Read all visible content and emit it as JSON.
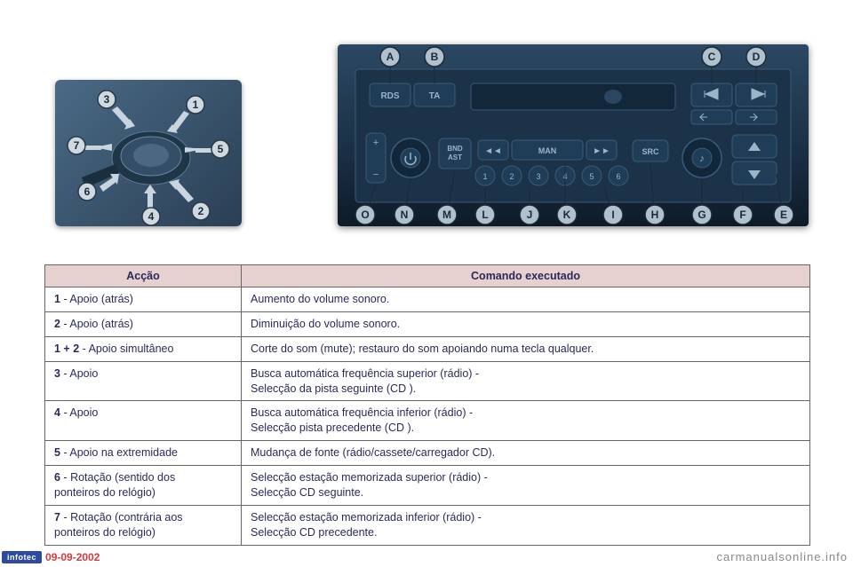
{
  "images": {
    "stalk": {
      "bg_gradient": [
        "#4a6a85",
        "#2a3f55"
      ],
      "arrow_color": "#c8d4de",
      "number_circle_fill": "#d0d8e0",
      "number_circle_stroke": "#2a3a4a",
      "number_text_color": "#1a2a3a",
      "labels": [
        "1",
        "2",
        "3",
        "4",
        "5",
        "6",
        "7"
      ]
    },
    "radio": {
      "bg_gradient": [
        "#2c4862",
        "#1a2f45",
        "#0e1a28"
      ],
      "button_fill": "#1f3d56",
      "button_stroke": "#3a5a78",
      "text_color": "#9ab4c8",
      "callout_circle_fill": "#b0c0cc",
      "callout_circle_stroke": "#1a2a3a",
      "callout_text_color": "#1a2a3a",
      "top_labels": [
        "A",
        "B",
        "C",
        "D"
      ],
      "bottom_labels": [
        "O",
        "N",
        "M",
        "L",
        "J",
        "K",
        "I",
        "H",
        "G",
        "F",
        "E"
      ],
      "btn_texts": {
        "rds": "RDS",
        "ta": "TA",
        "bnd": "BND\nAST",
        "man": "MAN",
        "src": "SRC"
      }
    }
  },
  "table": {
    "header": {
      "action": "Acção",
      "command": "Comando executado"
    },
    "rows": [
      {
        "num": "1",
        "action": "- Apoio (atrás)",
        "command": "Aumento do volume sonoro."
      },
      {
        "num": "2",
        "action": "- Apoio (atrás)",
        "command": "Diminuição do volume sonoro."
      },
      {
        "num": "1 + 2",
        "action": "- Apoio simultâneo",
        "command": "Corte do som (mute); restauro do som apoiando numa tecla qualquer."
      },
      {
        "num": "3",
        "action": "- Apoio",
        "command": "Busca automática frequência superior (rádio) -\nSelecção da pista seguinte (CD )."
      },
      {
        "num": "4",
        "action": "- Apoio",
        "command": "Busca automática frequência inferior (rádio) -\nSelecção pista precedente (CD )."
      },
      {
        "num": "5",
        "action": "- Apoio na extremidade",
        "command": "Mudança de fonte (rádio/cassete/carregador CD)."
      },
      {
        "num": "6",
        "action": "- Rotação (sentido dos\n  ponteiros do relógio)",
        "command": "Selecção estação memorizada superior (rádio) -\nSelecção CD seguinte."
      },
      {
        "num": "7",
        "action": "- Rotação (contrária aos\n  ponteiros do relógio)",
        "command": "Selecção estação memorizada inferior (rádio) -\nSelecção CD precedente."
      }
    ]
  },
  "footer": {
    "badge": "infotec",
    "date": "09-09-2002",
    "site": "carmanualsonline.info"
  }
}
